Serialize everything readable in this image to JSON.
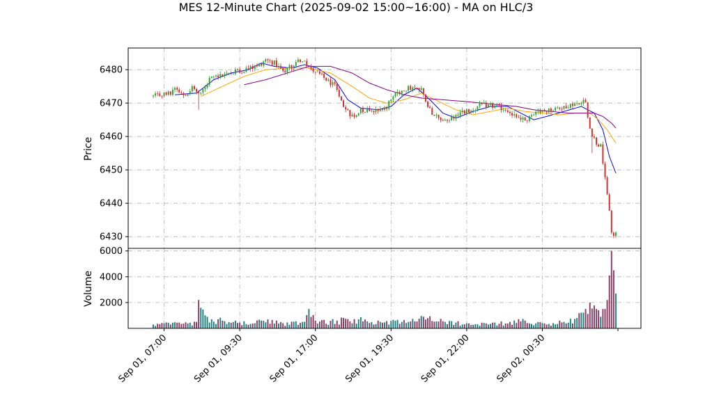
{
  "chart_data": {
    "type": "candlestick",
    "title": "MES 12-Minute Chart (2025-09-02 15:00~16:00) - MA on HLC/3",
    "price_panel": {
      "ylabel": "Price",
      "ylim": [
        6426.5,
        6486.5
      ],
      "yticks": [
        6430,
        6440,
        6450,
        6460,
        6470,
        6480
      ]
    },
    "volume_panel": {
      "ylabel": "Volume",
      "ylim": [
        0,
        6200
      ],
      "yticks": [
        2000,
        4000,
        6000
      ]
    },
    "x_ticks": [
      {
        "index": 5,
        "label": "Sep 01, 07:00"
      },
      {
        "index": 40,
        "label": "Sep 01, 09:30"
      },
      {
        "index": 75,
        "label": "Sep 01, 17:00"
      },
      {
        "index": 110,
        "label": "Sep 01, 19:30"
      },
      {
        "index": 145,
        "label": "Sep 01, 22:00"
      },
      {
        "index": 180,
        "label": "Sep 02, 00:30"
      }
    ],
    "bar_count": 215,
    "grid": true,
    "colors": {
      "up": "#2ca02c",
      "down": "#d62728",
      "vol_up": "#1f7f7f",
      "vol_down": "#8b3a62",
      "ma_fast": "#0000ff",
      "ma_mid": "#ffa500",
      "ma_slow": "#800080"
    },
    "price_keypoints": [
      [
        0,
        6472
      ],
      [
        8,
        6473
      ],
      [
        10,
        6475
      ],
      [
        14,
        6472.5
      ],
      [
        18,
        6474.5
      ],
      [
        22,
        6473
      ],
      [
        26,
        6477
      ],
      [
        30,
        6478
      ],
      [
        36,
        6479
      ],
      [
        42,
        6480
      ],
      [
        48,
        6481
      ],
      [
        52,
        6483
      ],
      [
        56,
        6482
      ],
      [
        60,
        6479.5
      ],
      [
        64,
        6481
      ],
      [
        68,
        6483
      ],
      [
        72,
        6481
      ],
      [
        78,
        6478
      ],
      [
        84,
        6475
      ],
      [
        88,
        6469
      ],
      [
        92,
        6466
      ],
      [
        96,
        6468
      ],
      [
        102,
        6468
      ],
      [
        108,
        6469
      ],
      [
        112,
        6473
      ],
      [
        118,
        6474.5
      ],
      [
        124,
        6474
      ],
      [
        128,
        6468
      ],
      [
        132,
        6465
      ],
      [
        136,
        6465
      ],
      [
        142,
        6467
      ],
      [
        148,
        6468
      ],
      [
        152,
        6469.5
      ],
      [
        158,
        6469
      ],
      [
        164,
        6468
      ],
      [
        168,
        6466
      ],
      [
        172,
        6465
      ],
      [
        178,
        6467
      ],
      [
        184,
        6468
      ],
      [
        190,
        6469
      ],
      [
        196,
        6470
      ],
      [
        200,
        6471
      ],
      [
        202,
        6462
      ],
      [
        205,
        6458
      ],
      [
        207,
        6457
      ],
      [
        209,
        6448
      ],
      [
        211,
        6438
      ],
      [
        212,
        6430
      ],
      [
        214,
        6431
      ]
    ],
    "spikes": [
      {
        "index": 21,
        "low": 6468
      },
      {
        "index": 203,
        "low": 6455
      }
    ],
    "volume_keypoints": [
      [
        0,
        300
      ],
      [
        20,
        500
      ],
      [
        21,
        2200
      ],
      [
        22,
        1600
      ],
      [
        25,
        900
      ],
      [
        30,
        700
      ],
      [
        40,
        450
      ],
      [
        50,
        600
      ],
      [
        60,
        400
      ],
      [
        70,
        500
      ],
      [
        72,
        1500
      ],
      [
        75,
        600
      ],
      [
        85,
        600
      ],
      [
        95,
        700
      ],
      [
        105,
        500
      ],
      [
        115,
        500
      ],
      [
        125,
        900
      ],
      [
        135,
        500
      ],
      [
        145,
        400
      ],
      [
        155,
        300
      ],
      [
        165,
        500
      ],
      [
        172,
        600
      ],
      [
        180,
        400
      ],
      [
        190,
        500
      ],
      [
        196,
        800
      ],
      [
        200,
        1500
      ],
      [
        202,
        2000
      ],
      [
        205,
        1500
      ],
      [
        207,
        900
      ],
      [
        208,
        1500
      ],
      [
        210,
        2200
      ],
      [
        211,
        4100
      ],
      [
        212,
        6000
      ],
      [
        213,
        4500
      ],
      [
        214,
        2700
      ]
    ],
    "moving_averages": [
      {
        "key": "ma_fast",
        "start": 10,
        "points": [
          [
            10,
            6472.5
          ],
          [
            20,
            6473
          ],
          [
            28,
            6477
          ],
          [
            36,
            6479
          ],
          [
            44,
            6480
          ],
          [
            50,
            6482
          ],
          [
            56,
            6481
          ],
          [
            64,
            6480.5
          ],
          [
            70,
            6481.5
          ],
          [
            76,
            6480.5
          ],
          [
            84,
            6477
          ],
          [
            90,
            6471
          ],
          [
            96,
            6468.5
          ],
          [
            104,
            6468
          ],
          [
            110,
            6469
          ],
          [
            116,
            6472.5
          ],
          [
            122,
            6474.5
          ],
          [
            128,
            6471
          ],
          [
            134,
            6467
          ],
          [
            140,
            6465.5
          ],
          [
            148,
            6467.5
          ],
          [
            156,
            6469
          ],
          [
            164,
            6469
          ],
          [
            170,
            6467
          ],
          [
            176,
            6465
          ],
          [
            182,
            6466
          ],
          [
            190,
            6467.5
          ],
          [
            198,
            6469
          ],
          [
            204,
            6467
          ],
          [
            208,
            6462
          ],
          [
            211,
            6454
          ],
          [
            214,
            6449
          ]
        ]
      },
      {
        "key": "ma_mid",
        "start": 22,
        "points": [
          [
            22,
            6472
          ],
          [
            32,
            6475
          ],
          [
            42,
            6478
          ],
          [
            52,
            6480
          ],
          [
            62,
            6480.5
          ],
          [
            72,
            6480.5
          ],
          [
            82,
            6479
          ],
          [
            92,
            6475
          ],
          [
            100,
            6471.5
          ],
          [
            108,
            6470
          ],
          [
            116,
            6471
          ],
          [
            124,
            6473
          ],
          [
            132,
            6470.5
          ],
          [
            140,
            6468
          ],
          [
            148,
            6466.5
          ],
          [
            156,
            6467.5
          ],
          [
            164,
            6468.5
          ],
          [
            172,
            6467.5
          ],
          [
            180,
            6467
          ],
          [
            188,
            6466.5
          ],
          [
            196,
            6467
          ],
          [
            202,
            6467
          ],
          [
            206,
            6465
          ],
          [
            210,
            6462
          ],
          [
            214,
            6458
          ]
        ]
      },
      {
        "key": "ma_slow",
        "start": 42,
        "points": [
          [
            42,
            6475.5
          ],
          [
            52,
            6477
          ],
          [
            62,
            6479
          ],
          [
            72,
            6481
          ],
          [
            82,
            6481
          ],
          [
            92,
            6479
          ],
          [
            100,
            6476
          ],
          [
            108,
            6474
          ],
          [
            116,
            6472.5
          ],
          [
            124,
            6471.5
          ],
          [
            134,
            6471
          ],
          [
            144,
            6470.5
          ],
          [
            152,
            6470
          ],
          [
            160,
            6469.5
          ],
          [
            168,
            6469
          ],
          [
            176,
            6468
          ],
          [
            184,
            6467.5
          ],
          [
            192,
            6467
          ],
          [
            198,
            6467
          ],
          [
            204,
            6467
          ],
          [
            208,
            6466
          ],
          [
            212,
            6464
          ],
          [
            214,
            6462.5
          ]
        ]
      }
    ]
  }
}
